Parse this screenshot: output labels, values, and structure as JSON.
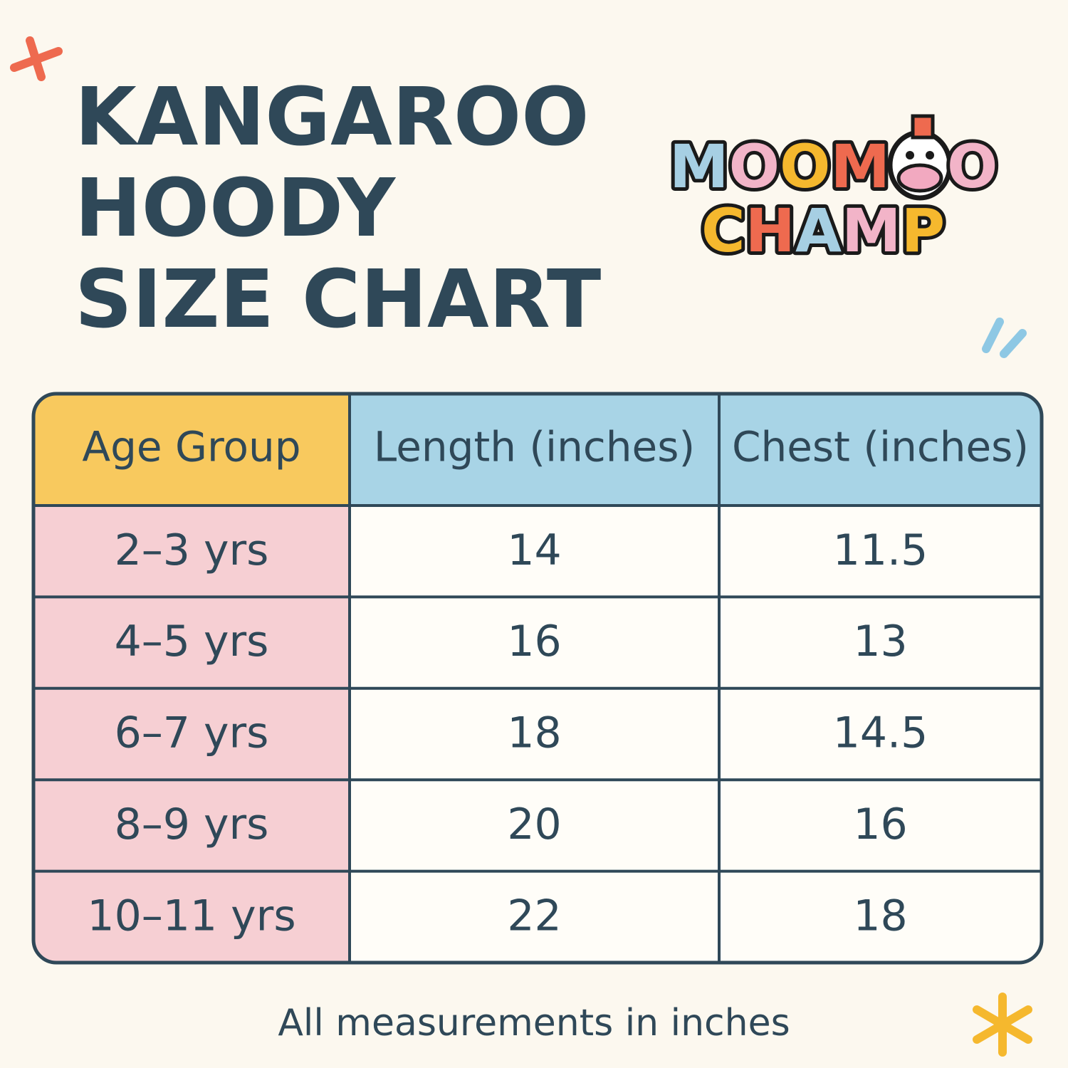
{
  "header": {
    "title_lines": [
      "KANGAROO",
      "HOODY",
      "SIZE CHART"
    ],
    "logo": {
      "line1_left": "MOOM",
      "line1_right": "O",
      "line2": "CHAMP"
    }
  },
  "table": {
    "columns": [
      "Age Group",
      "Length (inches)",
      "Chest (inches)"
    ],
    "rows": [
      [
        "2–3 yrs",
        14,
        11.5
      ],
      [
        "4–5 yrs",
        16,
        13
      ],
      [
        "6–7 yrs",
        18,
        14.5
      ],
      [
        "8–9 yrs",
        20,
        16
      ],
      [
        "10–11 yrs",
        22,
        18
      ]
    ]
  },
  "footer": {
    "note": "All measurements in inches"
  }
}
